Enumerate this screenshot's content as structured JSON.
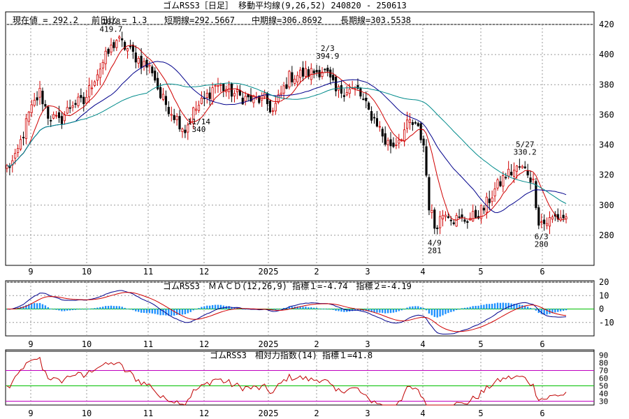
{
  "header": {
    "title": "ゴムRSS3［日足］ 移動平均線(9,26,52) 240820 - 250613",
    "last_label": "現在値 = 292.2",
    "change_label": "前日比 = 1.3",
    "short_label": "短期線=292.5667",
    "mid_label": "中期線=306.8692",
    "long_label": "長期線=303.5538"
  },
  "colors": {
    "up": "#d00000",
    "down": "#000000",
    "ma_short": "#d00000",
    "ma_mid": "#00008b",
    "ma_long": "#008b8b",
    "macd_line": "#00008b",
    "signal_line": "#d00000",
    "histogram": "#1e90ff",
    "zero_line": "#00c000",
    "rsi_line": "#c00000",
    "rsi_upper": "#c000c0",
    "rsi_mid": "#00c000",
    "rsi_lower": "#c000c0",
    "grid": "#999999"
  },
  "x_months": [
    "9",
    "10",
    "11",
    "12",
    "2025",
    "2",
    "3",
    "4",
    "5",
    "6"
  ],
  "macd_header": "ゴムRSS3　ＭＡＣＤ(12,26,9) 指標１=-4.74　指標２=-4.19",
  "rsi_header": "ゴムRSS3　相対力指数(14) 指標１=41.8",
  "chart_data": [
    {
      "type": "candlestick",
      "title": "ゴムRSS3［日足］ 移動平均線(9,26,52)",
      "period": "240820 - 250613",
      "ylim": [
        260,
        420
      ],
      "yticks": [
        280,
        300,
        320,
        340,
        360,
        380,
        400,
        420
      ],
      "grid": true,
      "anchors": [
        {
          "x": 0,
          "v": 325
        },
        {
          "x": 3,
          "v": 330
        },
        {
          "x": 8,
          "v": 360
        },
        {
          "x": 12,
          "v": 375
        },
        {
          "x": 15,
          "v": 360
        },
        {
          "x": 19,
          "v": 355
        },
        {
          "x": 24,
          "v": 368
        },
        {
          "x": 28,
          "v": 368
        },
        {
          "x": 32,
          "v": 385
        },
        {
          "x": 36,
          "v": 398
        },
        {
          "x": 40,
          "v": 410
        },
        {
          "x": 45,
          "v": 402
        },
        {
          "x": 49,
          "v": 395
        },
        {
          "x": 53,
          "v": 390
        },
        {
          "x": 56,
          "v": 372
        },
        {
          "x": 59,
          "v": 365
        },
        {
          "x": 63,
          "v": 355
        },
        {
          "x": 65,
          "v": 350
        },
        {
          "x": 68,
          "v": 362
        },
        {
          "x": 72,
          "v": 370
        },
        {
          "x": 76,
          "v": 380
        },
        {
          "x": 80,
          "v": 377
        },
        {
          "x": 85,
          "v": 372
        },
        {
          "x": 89,
          "v": 370
        },
        {
          "x": 94,
          "v": 370
        },
        {
          "x": 97,
          "v": 362
        },
        {
          "x": 99,
          "v": 370
        },
        {
          "x": 103,
          "v": 385
        },
        {
          "x": 107,
          "v": 387
        },
        {
          "x": 111,
          "v": 388
        },
        {
          "x": 115,
          "v": 390
        },
        {
          "x": 117,
          "v": 386
        },
        {
          "x": 120,
          "v": 375
        },
        {
          "x": 124,
          "v": 377
        },
        {
          "x": 128,
          "v": 376
        },
        {
          "x": 132,
          "v": 362
        },
        {
          "x": 135,
          "v": 355
        },
        {
          "x": 138,
          "v": 342
        },
        {
          "x": 141,
          "v": 340
        },
        {
          "x": 144,
          "v": 347
        },
        {
          "x": 147,
          "v": 355
        },
        {
          "x": 150,
          "v": 350
        },
        {
          "x": 152,
          "v": 340
        },
        {
          "x": 154,
          "v": 300
        },
        {
          "x": 156,
          "v": 286
        },
        {
          "x": 160,
          "v": 297
        },
        {
          "x": 163,
          "v": 291
        },
        {
          "x": 166,
          "v": 290
        },
        {
          "x": 170,
          "v": 292
        },
        {
          "x": 174,
          "v": 298
        },
        {
          "x": 178,
          "v": 310
        },
        {
          "x": 182,
          "v": 320
        },
        {
          "x": 187,
          "v": 325
        },
        {
          "x": 190,
          "v": 322
        },
        {
          "x": 192,
          "v": 315
        },
        {
          "x": 194,
          "v": 290
        },
        {
          "x": 196,
          "v": 288
        },
        {
          "x": 200,
          "v": 292
        },
        {
          "x": 204,
          "v": 292.2
        }
      ],
      "series": [
        {
          "name": "短期線",
          "value": 292.5667
        },
        {
          "name": "中期線",
          "value": 306.8692
        },
        {
          "name": "長期線",
          "value": 303.5538
        }
      ],
      "last": 292.2,
      "change": 1.3,
      "annotations": [
        {
          "x": 38,
          "date": "10/8",
          "value": "419.7",
          "position": "above"
        },
        {
          "x": 70,
          "date": "11/14",
          "value": "340",
          "position": "below"
        },
        {
          "x": 117,
          "date": "2/3",
          "value": "394.9",
          "position": "above"
        },
        {
          "x": 156,
          "date": "4/9",
          "value": "281",
          "position": "below"
        },
        {
          "x": 189,
          "date": "5/27",
          "value": "330.2",
          "position": "above"
        },
        {
          "x": 195,
          "date": "6/3",
          "value": "280",
          "position": "below"
        }
      ]
    },
    {
      "type": "line",
      "title": "ゴムRSS3　ＭＡＣＤ(12,26,9)",
      "ylim": [
        -20,
        20
      ],
      "yticks": [
        -10,
        0,
        10,
        20
      ],
      "series": [
        {
          "name": "指標１",
          "last": -4.74
        },
        {
          "name": "指標２",
          "last": -4.19
        }
      ]
    },
    {
      "type": "line",
      "title": "ゴムRSS3　相対力指数(14)",
      "ylim": [
        25,
        95
      ],
      "yticks": [
        30,
        40,
        50,
        60,
        70,
        80,
        90
      ],
      "reference_lines": [
        30,
        50,
        70
      ],
      "series": [
        {
          "name": "指標１",
          "last": 41.8
        }
      ]
    }
  ]
}
